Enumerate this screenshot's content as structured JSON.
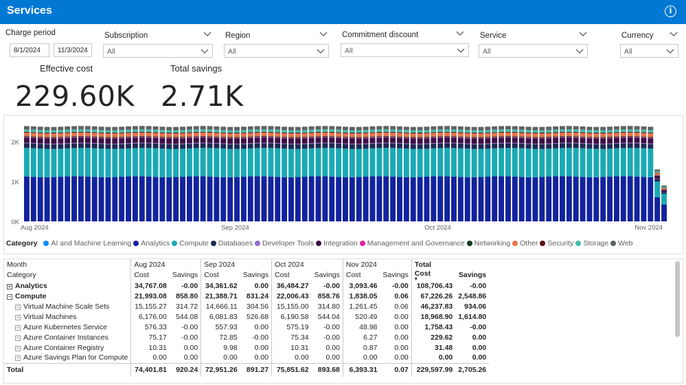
{
  "header": {
    "title": "Services",
    "info_icon": "info-icon"
  },
  "filters": {
    "charge_period": {
      "label": "Charge period",
      "start": "8/1/2024",
      "end": "11/3/2024"
    },
    "subscription": {
      "label": "Subscription",
      "value": "All"
    },
    "region": {
      "label": "Region",
      "value": "All"
    },
    "commitment_discount": {
      "label": "Commitment discount",
      "value": "All"
    },
    "service": {
      "label": "Service",
      "value": "All"
    },
    "currency": {
      "label": "Currency",
      "value": "All"
    }
  },
  "kpis": {
    "effective_cost": {
      "label": "Effective cost",
      "value": "229.60K"
    },
    "total_savings": {
      "label": "Total savings",
      "value": "2.71K"
    }
  },
  "chart_data": {
    "type": "bar",
    "stacked": true,
    "title": "",
    "xlabel": "",
    "ylabel": "",
    "ylim": [
      0,
      2400
    ],
    "yticks": [
      "0K",
      "1K",
      "2K"
    ],
    "xticks": [
      "Aug 2024",
      "Sep 2024",
      "Oct 2024",
      "Nov 2024"
    ],
    "num_days": 95,
    "series": [
      {
        "name": "AI and Machine Learning",
        "color": "#118dff",
        "daily": 0
      },
      {
        "name": "Analytics",
        "color": "#12239e",
        "daily": 1120
      },
      {
        "name": "Compute",
        "color": "#1aaab4",
        "daily": 710
      },
      {
        "name": "Databases",
        "color": "#1f2a52",
        "daily": 115
      },
      {
        "name": "Developer Tools",
        "color": "#8f6bd3",
        "daily": 15
      },
      {
        "name": "Integration",
        "color": "#3b1146",
        "daily": 130
      },
      {
        "name": "Management and Governance",
        "color": "#e3239f",
        "daily": 15
      },
      {
        "name": "Networking",
        "color": "#0e3b1d",
        "daily": 20
      },
      {
        "name": "Other",
        "color": "#e8754b",
        "daily": 90
      },
      {
        "name": "Security",
        "color": "#5a0f11",
        "daily": 20
      },
      {
        "name": "Storage",
        "color": "#47bdab",
        "daily": 60
      },
      {
        "name": "Web",
        "color": "#5d6263",
        "daily": 85
      }
    ]
  },
  "legend": {
    "title": "Category"
  },
  "table": {
    "header_month": "Month",
    "header_category": "Category",
    "months": [
      "Aug 2024",
      "Sep 2024",
      "Oct 2024",
      "Nov 2024"
    ],
    "total_label": "Total",
    "cost_label": "Cost",
    "savings_label": "Savings",
    "rows": [
      {
        "category": "Analytics",
        "level": 0,
        "values": [
          "34,767.08",
          "-0.00",
          "34,361.62",
          "0.00",
          "36,484.27",
          "-0.00",
          "3,093.46",
          "-0.00",
          "108,706.43",
          "-0.00"
        ]
      },
      {
        "category": "Compute",
        "level": 0,
        "expanded": true,
        "values": [
          "21,993.08",
          "858.80",
          "21,388.71",
          "831.24",
          "22,006.43",
          "858.76",
          "1,838.05",
          "0.06",
          "67,226.26",
          "2,548.86"
        ]
      },
      {
        "category": "Virtual Machine Scale Sets",
        "level": 1,
        "values": [
          "15,155.27",
          "314.72",
          "14,666.11",
          "304.56",
          "15,155.00",
          "314.80",
          "1,261.45",
          "0.06",
          "46,237.83",
          "934.06"
        ]
      },
      {
        "category": "Virtual Machines",
        "level": 1,
        "values": [
          "6,176.00",
          "544.08",
          "6,081.83",
          "526.68",
          "6,190.58",
          "544.04",
          "520.49",
          "0.00",
          "18,968.90",
          "1,614.80"
        ]
      },
      {
        "category": "Azure Kubernetes Service",
        "level": 1,
        "values": [
          "576.33",
          "-0.00",
          "557.93",
          "0.00",
          "575.19",
          "-0.00",
          "48.98",
          "0.00",
          "1,758.43",
          "-0.00"
        ]
      },
      {
        "category": "Azure Container Instances",
        "level": 1,
        "values": [
          "75.17",
          "-0.00",
          "72.85",
          "-0.00",
          "75.34",
          "-0.00",
          "6.27",
          "0.00",
          "229.62",
          "0.00"
        ]
      },
      {
        "category": "Azure Container Registry",
        "level": 1,
        "values": [
          "10.31",
          "0.00",
          "9.98",
          "0.00",
          "10.31",
          "0.00",
          "0.87",
          "0.00",
          "31.48",
          "0.00"
        ]
      },
      {
        "category": "Azure Savings Plan for Compute",
        "level": 1,
        "values": [
          "0.00",
          "0.00",
          "0.00",
          "0.00",
          "0.00",
          "0.00",
          "0.00",
          "0.00",
          "0.00",
          "0.00"
        ]
      }
    ],
    "total_row": {
      "category": "Total",
      "values": [
        "74,401.81",
        "920.24",
        "72,951.26",
        "891.27",
        "75,851.62",
        "893.68",
        "6,393.31",
        "0.07",
        "229,597.99",
        "2,705.26"
      ]
    }
  }
}
